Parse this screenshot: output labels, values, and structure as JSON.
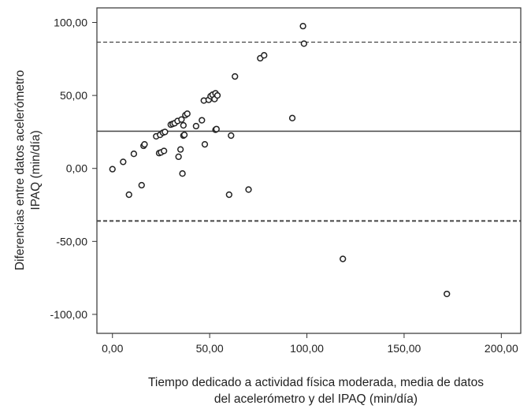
{
  "chart_data": {
    "type": "scatter",
    "title": "",
    "xlabel_lines": [
      "Tiempo dedicado a actividad física moderada, media de datos",
      "del acelerómetro y del IPAQ (min/día)"
    ],
    "ylabel_lines": [
      "Diferencias entre datos acelerómetro",
      "IPAQ (min/día)"
    ],
    "xlim": [
      -8,
      210
    ],
    "ylim": [
      -113,
      110
    ],
    "x_ticks": [
      0,
      50,
      100,
      150,
      200
    ],
    "x_tick_labels": [
      "0,00",
      "50,00",
      "100,00",
      "150,00",
      "200,00"
    ],
    "y_ticks": [
      100,
      50,
      0,
      -50,
      -100
    ],
    "y_tick_labels": [
      "100,00",
      "50,00",
      "0,00",
      "-50,00",
      "-100,00"
    ],
    "grid": false,
    "reference_lines": [
      {
        "y": 86.5,
        "style": "dashed"
      },
      {
        "y": 25.5,
        "style": "solid"
      },
      {
        "y": -36,
        "style": "dashed"
      }
    ],
    "points": [
      {
        "x": 0,
        "y": -0.5
      },
      {
        "x": 5.5,
        "y": 4.5
      },
      {
        "x": 8.5,
        "y": -18
      },
      {
        "x": 11,
        "y": 10
      },
      {
        "x": 15,
        "y": -11.5
      },
      {
        "x": 16,
        "y": 15.5
      },
      {
        "x": 16.5,
        "y": 16.5
      },
      {
        "x": 22.5,
        "y": 22
      },
      {
        "x": 24,
        "y": 10.5
      },
      {
        "x": 24.5,
        "y": 23
      },
      {
        "x": 25,
        "y": 11
      },
      {
        "x": 26,
        "y": 24.5
      },
      {
        "x": 26.5,
        "y": 12
      },
      {
        "x": 27,
        "y": 25
      },
      {
        "x": 30,
        "y": 30
      },
      {
        "x": 31,
        "y": 30.5
      },
      {
        "x": 32,
        "y": 31
      },
      {
        "x": 33.5,
        "y": 32.5
      },
      {
        "x": 34,
        "y": 8
      },
      {
        "x": 35,
        "y": 13
      },
      {
        "x": 35.5,
        "y": 33.5
      },
      {
        "x": 36,
        "y": -3.5
      },
      {
        "x": 36.5,
        "y": 22.5
      },
      {
        "x": 36.5,
        "y": 29.5
      },
      {
        "x": 37,
        "y": 23
      },
      {
        "x": 37.5,
        "y": 36.5
      },
      {
        "x": 38.5,
        "y": 37.5
      },
      {
        "x": 43,
        "y": 29
      },
      {
        "x": 46,
        "y": 33
      },
      {
        "x": 47,
        "y": 46.5
      },
      {
        "x": 47.5,
        "y": 16.5
      },
      {
        "x": 49.5,
        "y": 47
      },
      {
        "x": 50.5,
        "y": 49.5
      },
      {
        "x": 51.5,
        "y": 50.5
      },
      {
        "x": 52.5,
        "y": 47.5
      },
      {
        "x": 53,
        "y": 51.5
      },
      {
        "x": 53,
        "y": 26.5
      },
      {
        "x": 53.5,
        "y": 27
      },
      {
        "x": 54,
        "y": 50
      },
      {
        "x": 60,
        "y": -18
      },
      {
        "x": 61,
        "y": 22.5
      },
      {
        "x": 63,
        "y": 63
      },
      {
        "x": 70,
        "y": -14.5
      },
      {
        "x": 76,
        "y": 75.5
      },
      {
        "x": 78,
        "y": 77.5
      },
      {
        "x": 92.5,
        "y": 34.5
      },
      {
        "x": 98,
        "y": 97.5
      },
      {
        "x": 98.5,
        "y": 85.5
      },
      {
        "x": 118.5,
        "y": -62
      },
      {
        "x": 172,
        "y": -86
      }
    ]
  }
}
